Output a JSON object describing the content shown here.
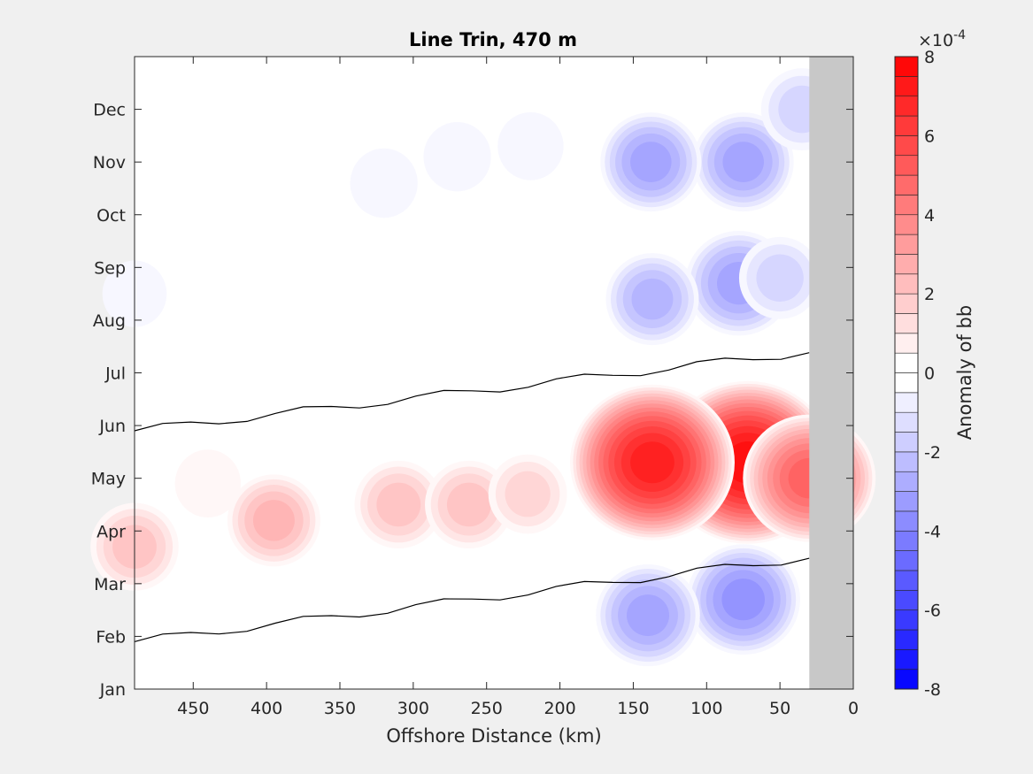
{
  "chart_data": {
    "type": "heatmap",
    "title": "Line Trin, 470 m",
    "xlabel": "Offshore Distance (km)",
    "ylabel": "",
    "xlim": [
      490,
      0
    ],
    "x_reversed": true,
    "x_ticks": [
      450,
      400,
      350,
      300,
      250,
      200,
      150,
      100,
      50,
      0
    ],
    "y_ticks": [
      "Jan",
      "Feb",
      "Mar",
      "Apr",
      "May",
      "Jun",
      "Jul",
      "Aug",
      "Sep",
      "Oct",
      "Nov",
      "Dec"
    ],
    "no_data_region_km": [
      0,
      30
    ],
    "no_data_color": "#c8c8c8",
    "colorbar": {
      "label": "Anomaly of bb",
      "exponent_label": "×10",
      "exponent_power": "-4",
      "clim": [
        -8,
        8
      ],
      "ticks": [
        "8",
        "6",
        "4",
        "2",
        "0",
        "-2",
        "-4",
        "-6",
        "-8"
      ],
      "levels_per_unit": 2,
      "colormap": "blue-white-red"
    },
    "features": [
      {
        "kind": "positive",
        "peak": 7.5,
        "x_km": 72,
        "month": 4.3
      },
      {
        "kind": "positive",
        "peak": 7.0,
        "x_km": 137,
        "month": 4.3
      },
      {
        "kind": "positive",
        "peak": 5.0,
        "x_km": 30,
        "month": 4.0
      },
      {
        "kind": "positive",
        "peak": 2.5,
        "x_km": 395,
        "month": 3.2
      },
      {
        "kind": "positive",
        "peak": 2.2,
        "x_km": 490,
        "month": 2.7
      },
      {
        "kind": "positive",
        "peak": 2.2,
        "x_km": 310,
        "month": 3.5
      },
      {
        "kind": "positive",
        "peak": 2.2,
        "x_km": 262,
        "month": 3.5
      },
      {
        "kind": "positive",
        "peak": 1.6,
        "x_km": 222,
        "month": 3.7
      },
      {
        "kind": "positive",
        "peak": 0.8,
        "x_km": 440,
        "month": 3.9
      },
      {
        "kind": "negative",
        "peak": -3.8,
        "x_km": 75,
        "month": 1.7
      },
      {
        "kind": "negative",
        "peak": -3.2,
        "x_km": 140,
        "month": 1.4
      },
      {
        "kind": "negative",
        "peak": -3.4,
        "x_km": 78,
        "month": 7.7
      },
      {
        "kind": "negative",
        "peak": -2.5,
        "x_km": 137,
        "month": 7.4
      },
      {
        "kind": "negative",
        "peak": -3.0,
        "x_km": 75,
        "month": 10.0
      },
      {
        "kind": "negative",
        "peak": -3.0,
        "x_km": 138,
        "month": 10.0
      },
      {
        "kind": "negative",
        "peak": -1.8,
        "x_km": 50,
        "month": 7.8
      },
      {
        "kind": "negative",
        "peak": -1.8,
        "x_km": 35,
        "month": 11.0
      },
      {
        "kind": "negative",
        "peak": -0.9,
        "x_km": 270,
        "month": 10.1
      },
      {
        "kind": "negative",
        "peak": -0.9,
        "x_km": 320,
        "month": 9.6
      },
      {
        "kind": "negative",
        "peak": -0.8,
        "x_km": 220,
        "month": 10.3
      },
      {
        "kind": "negative",
        "peak": -0.7,
        "x_km": 490,
        "month": 7.5
      }
    ]
  }
}
